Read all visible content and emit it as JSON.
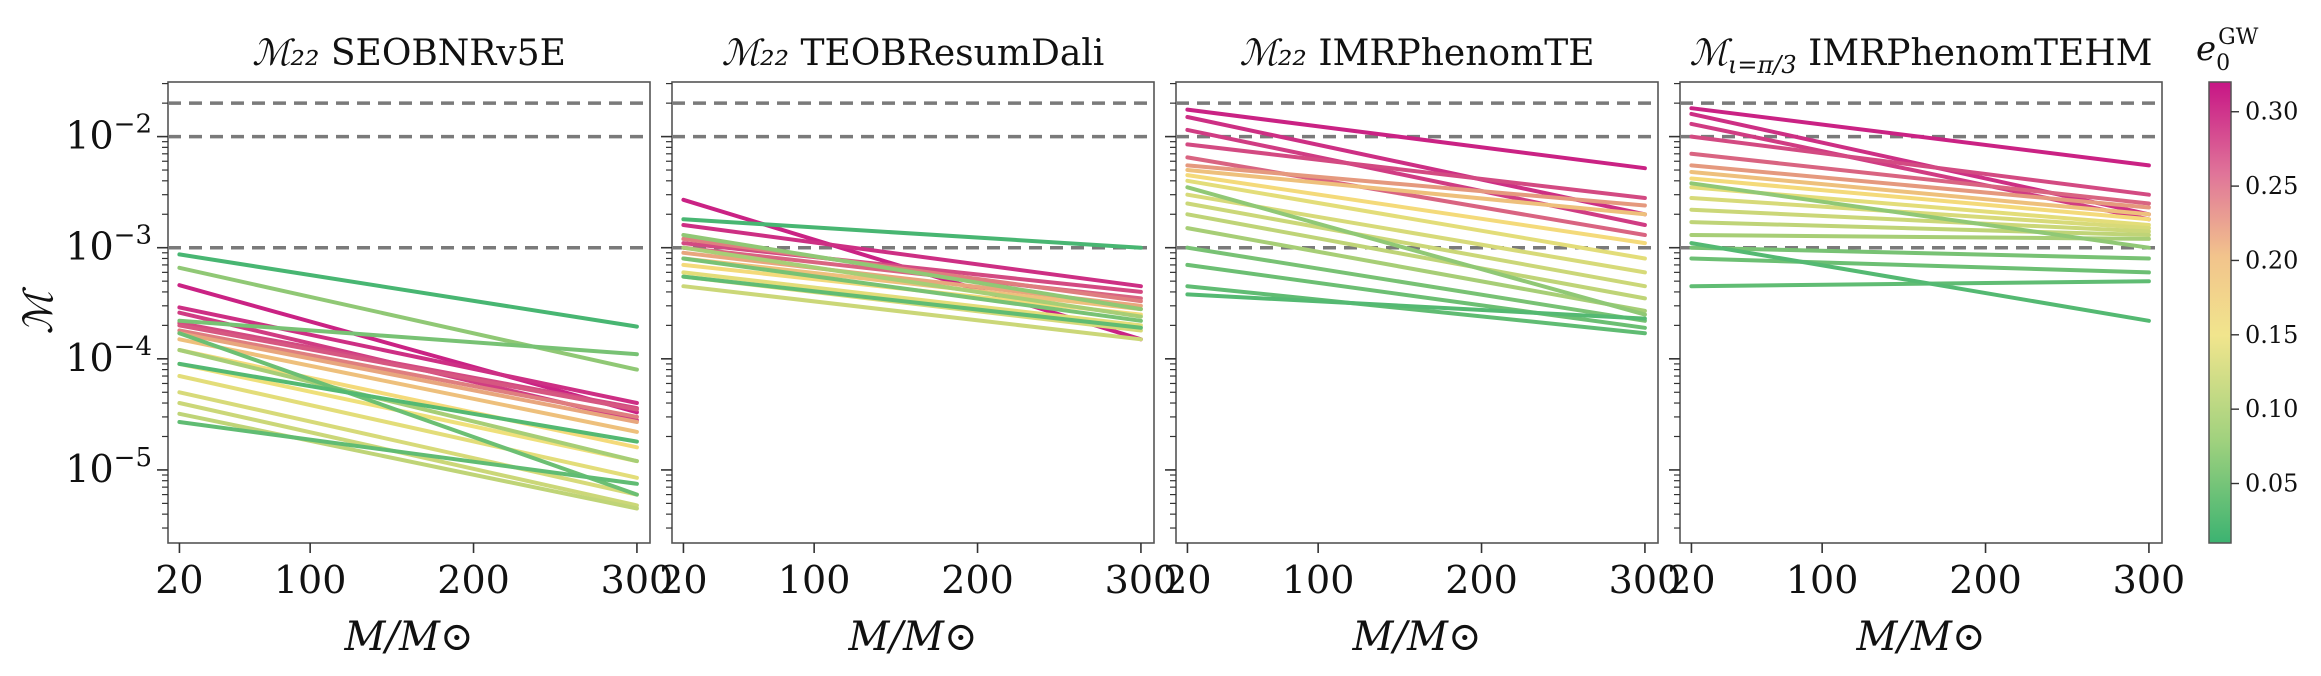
{
  "chart_data": {
    "type": "line",
    "panels": [
      {
        "title_symbol": "ℳ₂₂",
        "title_name": "SEOBNRv5E",
        "series": [
          {
            "e0": 0.31,
            "x": [
              20,
              300
            ],
            "y": [
              0.00046,
              3.3e-05
            ]
          },
          {
            "e0": 0.3,
            "x": [
              20,
              300
            ],
            "y": [
              0.00029,
              4e-05
            ]
          },
          {
            "e0": 0.29,
            "x": [
              20,
              300
            ],
            "y": [
              0.00026,
              2.8e-05
            ]
          },
          {
            "e0": 0.28,
            "x": [
              20,
              300
            ],
            "y": [
              0.00021,
              3.6e-05
            ]
          },
          {
            "e0": 0.27,
            "x": [
              20,
              300
            ],
            "y": [
              0.0002,
              3.5e-05
            ]
          },
          {
            "e0": 0.24,
            "x": [
              20,
              300
            ],
            "y": [
              0.00018,
              3e-05
            ]
          },
          {
            "e0": 0.21,
            "x": [
              20,
              300
            ],
            "y": [
              0.00017,
              2.7e-05
            ]
          },
          {
            "e0": 0.19,
            "x": [
              20,
              300
            ],
            "y": [
              0.00015,
              2.2e-05
            ]
          },
          {
            "e0": 0.17,
            "x": [
              20,
              300
            ],
            "y": [
              0.00012,
              1.6e-05
            ]
          },
          {
            "e0": 0.16,
            "x": [
              20,
              300
            ],
            "y": [
              9e-05,
              1.2e-05
            ]
          },
          {
            "e0": 0.15,
            "x": [
              20,
              300
            ],
            "y": [
              7e-05,
              8.5e-06
            ]
          },
          {
            "e0": 0.14,
            "x": [
              20,
              300
            ],
            "y": [
              5e-05,
              6e-06
            ]
          },
          {
            "e0": 0.13,
            "x": [
              20,
              300
            ],
            "y": [
              4e-05,
              4.8e-06
            ]
          },
          {
            "e0": 0.12,
            "x": [
              20,
              300
            ],
            "y": [
              3.2e-05,
              4.5e-06
            ]
          },
          {
            "e0": 0.1,
            "x": [
              20,
              300
            ],
            "y": [
              0.00012,
              1.2e-05
            ]
          },
          {
            "e0": 0.08,
            "x": [
              20,
              300
            ],
            "y": [
              0.00066,
              8e-05
            ]
          },
          {
            "e0": 0.06,
            "x": [
              20,
              300
            ],
            "y": [
              0.00022,
              0.00011
            ]
          },
          {
            "e0": 0.05,
            "x": [
              20,
              300
            ],
            "y": [
              0.00017,
              6e-06
            ]
          },
          {
            "e0": 0.04,
            "x": [
              20,
              300
            ],
            "y": [
              2.7e-05,
              7.5e-06
            ]
          },
          {
            "e0": 0.03,
            "x": [
              20,
              300
            ],
            "y": [
              9e-05,
              1.8e-05
            ]
          },
          {
            "e0": 0.02,
            "x": [
              20,
              300
            ],
            "y": [
              0.00087,
              0.000195
            ]
          }
        ]
      },
      {
        "title_symbol": "ℳ₂₂",
        "title_name": "TEOBResumDali",
        "series": [
          {
            "e0": 0.31,
            "x": [
              20,
              300
            ],
            "y": [
              0.0027,
              0.00015
            ]
          },
          {
            "e0": 0.3,
            "x": [
              20,
              300
            ],
            "y": [
              0.0016,
              0.00045
            ]
          },
          {
            "e0": 0.28,
            "x": [
              20,
              300
            ],
            "y": [
              0.0011,
              0.0004
            ]
          },
          {
            "e0": 0.26,
            "x": [
              20,
              300
            ],
            "y": [
              0.001,
              0.00035
            ]
          },
          {
            "e0": 0.24,
            "x": [
              20,
              300
            ],
            "y": [
              0.0012,
              0.00033
            ]
          },
          {
            "e0": 0.21,
            "x": [
              20,
              300
            ],
            "y": [
              0.0009,
              0.0003
            ]
          },
          {
            "e0": 0.19,
            "x": [
              20,
              300
            ],
            "y": [
              0.0008,
              0.00028
            ]
          },
          {
            "e0": 0.17,
            "x": [
              20,
              300
            ],
            "y": [
              0.0007,
              0.00025
            ]
          },
          {
            "e0": 0.15,
            "x": [
              20,
              300
            ],
            "y": [
              0.0006,
              0.0002
            ]
          },
          {
            "e0": 0.14,
            "x": [
              20,
              300
            ],
            "y": [
              0.00055,
              0.00018
            ]
          },
          {
            "e0": 0.13,
            "x": [
              20,
              300
            ],
            "y": [
              0.00045,
              0.00015
            ]
          },
          {
            "e0": 0.1,
            "x": [
              20,
              300
            ],
            "y": [
              0.001,
              0.00024
            ]
          },
          {
            "e0": 0.08,
            "x": [
              20,
              300
            ],
            "y": [
              0.0013,
              0.00028
            ]
          },
          {
            "e0": 0.06,
            "x": [
              20,
              300
            ],
            "y": [
              0.0008,
              0.00022
            ]
          },
          {
            "e0": 0.04,
            "x": [
              20,
              300
            ],
            "y": [
              0.00055,
              0.00019
            ]
          },
          {
            "e0": 0.02,
            "x": [
              20,
              300
            ],
            "y": [
              0.0018,
              0.001
            ]
          }
        ]
      },
      {
        "title_symbol": "ℳ₂₂",
        "title_name": "IMRPhenomTE",
        "series": [
          {
            "e0": 0.31,
            "x": [
              20,
              300
            ],
            "y": [
              0.0175,
              0.0052
            ]
          },
          {
            "e0": 0.3,
            "x": [
              20,
              300
            ],
            "y": [
              0.015,
              0.002
            ]
          },
          {
            "e0": 0.29,
            "x": [
              20,
              300
            ],
            "y": [
              0.0115,
              0.0016
            ]
          },
          {
            "e0": 0.28,
            "x": [
              20,
              300
            ],
            "y": [
              0.0085,
              0.0028
            ]
          },
          {
            "e0": 0.26,
            "x": [
              20,
              300
            ],
            "y": [
              0.0065,
              0.0013
            ]
          },
          {
            "e0": 0.22,
            "x": [
              20,
              300
            ],
            "y": [
              0.0055,
              0.0024
            ]
          },
          {
            "e0": 0.19,
            "x": [
              20,
              300
            ],
            "y": [
              0.005,
              0.002
            ]
          },
          {
            "e0": 0.17,
            "x": [
              20,
              300
            ],
            "y": [
              0.0045,
              0.0011
            ]
          },
          {
            "e0": 0.15,
            "x": [
              20,
              300
            ],
            "y": [
              0.004,
              0.0008
            ]
          },
          {
            "e0": 0.14,
            "x": [
              20,
              300
            ],
            "y": [
              0.003,
              0.0006
            ]
          },
          {
            "e0": 0.13,
            "x": [
              20,
              300
            ],
            "y": [
              0.0025,
              0.00045
            ]
          },
          {
            "e0": 0.12,
            "x": [
              20,
              300
            ],
            "y": [
              0.002,
              0.00035
            ]
          },
          {
            "e0": 0.1,
            "x": [
              20,
              300
            ],
            "y": [
              0.0015,
              0.00027
            ]
          },
          {
            "e0": 0.08,
            "x": [
              20,
              300
            ],
            "y": [
              0.0035,
              0.00025
            ]
          },
          {
            "e0": 0.06,
            "x": [
              20,
              300
            ],
            "y": [
              0.001,
              0.00022
            ]
          },
          {
            "e0": 0.05,
            "x": [
              20,
              300
            ],
            "y": [
              0.0007,
              0.00019
            ]
          },
          {
            "e0": 0.04,
            "x": [
              20,
              300
            ],
            "y": [
              0.00045,
              0.00017
            ]
          },
          {
            "e0": 0.03,
            "x": [
              20,
              300
            ],
            "y": [
              0.00038,
              0.00023
            ]
          }
        ]
      },
      {
        "title_symbol": "ℳ",
        "title_subscript": "ι=π/3",
        "title_name": "IMRPhenomTEHM",
        "series": [
          {
            "e0": 0.31,
            "x": [
              20,
              300
            ],
            "y": [
              0.018,
              0.0055
            ]
          },
          {
            "e0": 0.3,
            "x": [
              20,
              300
            ],
            "y": [
              0.016,
              0.002
            ]
          },
          {
            "e0": 0.29,
            "x": [
              20,
              300
            ],
            "y": [
              0.013,
              0.0018
            ]
          },
          {
            "e0": 0.28,
            "x": [
              20,
              300
            ],
            "y": [
              0.01,
              0.003
            ]
          },
          {
            "e0": 0.26,
            "x": [
              20,
              300
            ],
            "y": [
              0.007,
              0.0025
            ]
          },
          {
            "e0": 0.22,
            "x": [
              20,
              300
            ],
            "y": [
              0.0055,
              0.0023
            ]
          },
          {
            "e0": 0.19,
            "x": [
              20,
              300
            ],
            "y": [
              0.0048,
              0.002
            ]
          },
          {
            "e0": 0.17,
            "x": [
              20,
              300
            ],
            "y": [
              0.0042,
              0.0018
            ]
          },
          {
            "e0": 0.15,
            "x": [
              20,
              300
            ],
            "y": [
              0.0035,
              0.0016
            ]
          },
          {
            "e0": 0.14,
            "x": [
              20,
              300
            ],
            "y": [
              0.0028,
              0.0015
            ]
          },
          {
            "e0": 0.13,
            "x": [
              20,
              300
            ],
            "y": [
              0.0022,
              0.0014
            ]
          },
          {
            "e0": 0.12,
            "x": [
              20,
              300
            ],
            "y": [
              0.0017,
              0.0013
            ]
          },
          {
            "e0": 0.1,
            "x": [
              20,
              300
            ],
            "y": [
              0.0013,
              0.0012
            ]
          },
          {
            "e0": 0.08,
            "x": [
              20,
              300
            ],
            "y": [
              0.0038,
              0.001
            ]
          },
          {
            "e0": 0.06,
            "x": [
              20,
              300
            ],
            "y": [
              0.001,
              0.0008
            ]
          },
          {
            "e0": 0.05,
            "x": [
              20,
              300
            ],
            "y": [
              0.0008,
              0.0006
            ]
          },
          {
            "e0": 0.04,
            "x": [
              20,
              300
            ],
            "y": [
              0.00045,
              0.0005
            ]
          },
          {
            "e0": 0.03,
            "x": [
              20,
              300
            ],
            "y": [
              0.0011,
              0.00022
            ]
          }
        ]
      }
    ],
    "xlim": [
      13,
      308
    ],
    "ylim": [
      2.2e-06,
      0.031
    ],
    "x_scale": "linear",
    "y_scale": "log",
    "xticks": [
      20,
      100,
      200,
      300
    ],
    "xtick_labels": [
      "20",
      "100",
      "200",
      "300"
    ],
    "yticks": [
      1e-05,
      0.0001,
      0.001,
      0.01
    ],
    "ytick_labels": [
      "10−5",
      "10−4",
      "10−3",
      "10−2"
    ],
    "reference_lines": [
      0.001,
      0.01,
      0.02
    ],
    "xlabel": "M/M⊙",
    "ylabel": "ℳ",
    "colorbar": {
      "title": "e0GW",
      "range": [
        0.01,
        0.32
      ],
      "ticks": [
        "0.05",
        "0.10",
        "0.15",
        "0.20",
        "0.25",
        "0.30"
      ],
      "colors": [
        "#3cb371",
        "#f5e17a",
        "#c71585"
      ]
    }
  }
}
